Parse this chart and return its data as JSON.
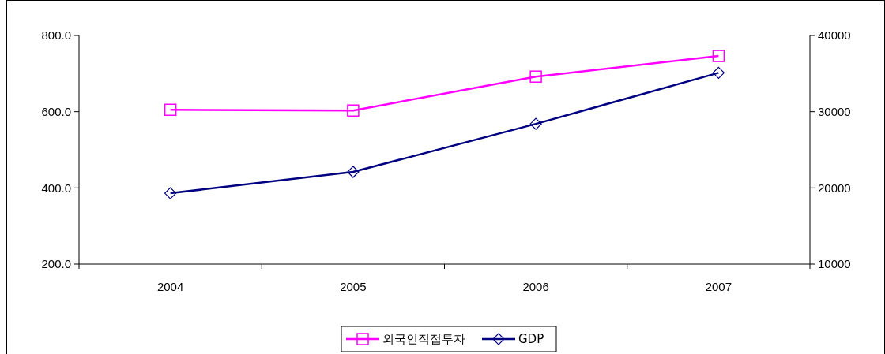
{
  "chart_data": {
    "type": "line",
    "categories": [
      "2004",
      "2005",
      "2006",
      "2007"
    ],
    "series": [
      {
        "name": "외국인직접투자",
        "color": "#ff00ff",
        "marker": "square",
        "values": [
          605,
          603,
          692,
          746
        ]
      },
      {
        "name": "GDP",
        "color": "#000080",
        "marker": "diamond",
        "axis": "y2",
        "values": [
          19300,
          22100,
          28400,
          35100
        ]
      }
    ],
    "ylim": [
      200,
      800
    ],
    "yticks": [
      {
        "value": 200,
        "label": "200.0"
      },
      {
        "value": 400,
        "label": "400.0"
      },
      {
        "value": 600,
        "label": "600.0"
      },
      {
        "value": 800,
        "label": "800.0"
      }
    ],
    "y2lim": [
      10000,
      40000
    ],
    "y2ticks": [
      10000,
      20000,
      30000,
      40000
    ],
    "grid": false,
    "legend": "bottom"
  }
}
